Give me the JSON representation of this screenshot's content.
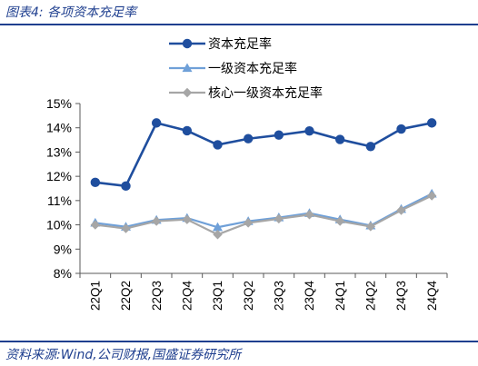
{
  "figure": {
    "title": "图表4:  各项资本充足率",
    "source": "资料来源:Wind,公司财报,国盛证券研究所"
  },
  "colors": {
    "header_blue": "#1f3f8f",
    "series1": "#1f4e9e",
    "series2": "#6fa0d8",
    "series3": "#a6a6a6",
    "axis": "#595959"
  },
  "chart_data": {
    "type": "line",
    "categories": [
      "22Q1",
      "22Q2",
      "22Q3",
      "22Q4",
      "23Q1",
      "23Q2",
      "23Q3",
      "23Q4",
      "24Q1",
      "24Q2",
      "24Q3",
      "24Q4"
    ],
    "ylim": [
      8,
      15
    ],
    "yticks": [
      "8%",
      "9%",
      "10%",
      "11%",
      "12%",
      "13%",
      "14%",
      "15%"
    ],
    "grid": false,
    "legend_position": "top-right",
    "series": [
      {
        "name": "资本充足率",
        "marker": "circle",
        "color": "#1f4e9e",
        "values": [
          11.75,
          11.6,
          14.2,
          13.88,
          13.3,
          13.55,
          13.7,
          13.87,
          13.52,
          13.23,
          13.95,
          14.2
        ]
      },
      {
        "name": "一级资本充足率",
        "marker": "triangle",
        "color": "#6fa0d8",
        "values": [
          10.08,
          9.92,
          10.2,
          10.28,
          9.9,
          10.15,
          10.3,
          10.48,
          10.22,
          9.97,
          10.65,
          11.28
        ]
      },
      {
        "name": "核心一级资本充足率",
        "marker": "diamond",
        "color": "#a6a6a6",
        "values": [
          10.0,
          9.85,
          10.15,
          10.22,
          9.6,
          10.08,
          10.25,
          10.42,
          10.15,
          9.93,
          10.6,
          11.2
        ]
      }
    ]
  }
}
